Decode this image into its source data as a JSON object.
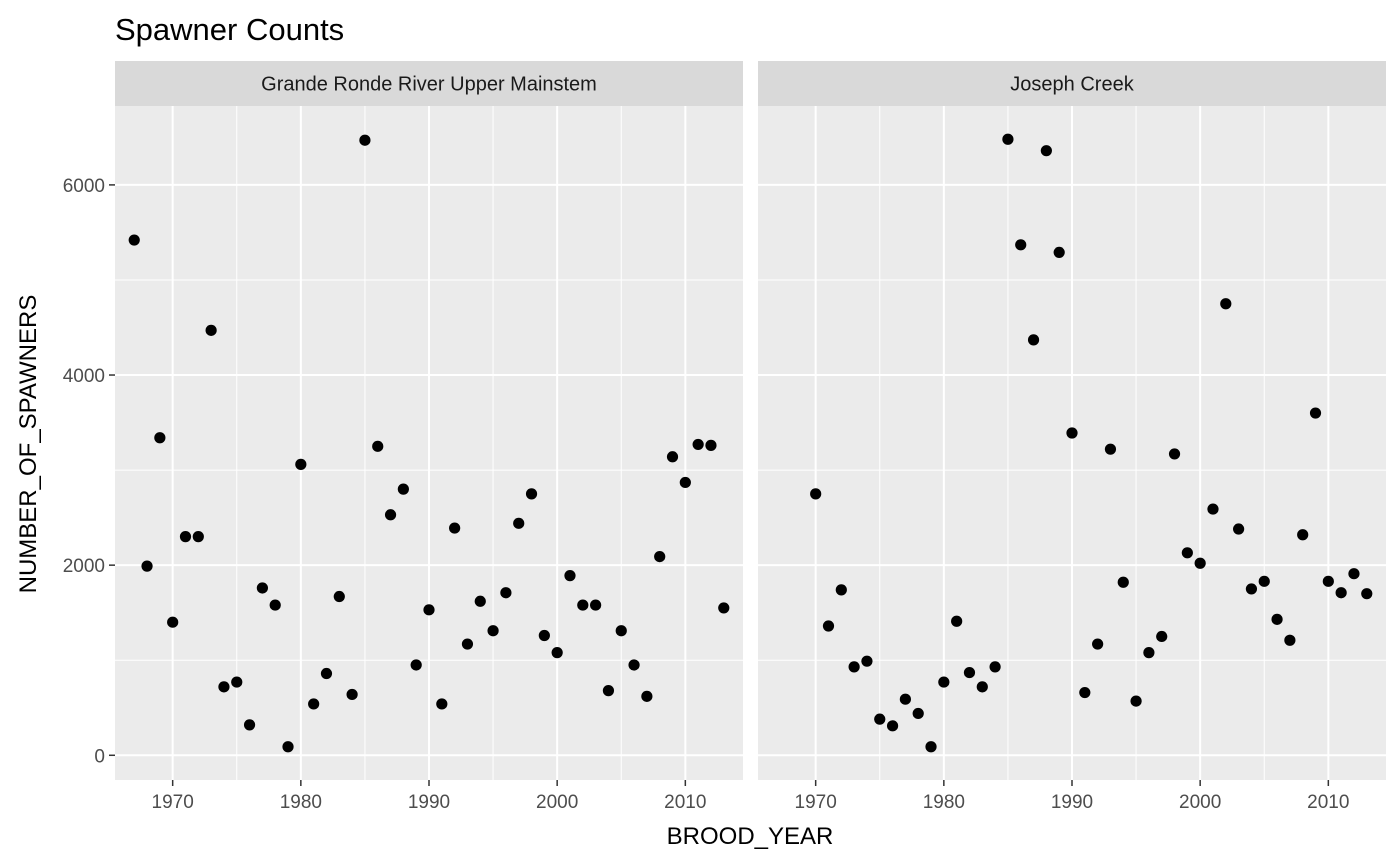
{
  "chart_data": {
    "type": "scatter",
    "title": "Spawner Counts",
    "xlabel": "BROOD_YEAR",
    "ylabel": "NUMBER_OF_SPAWNERS",
    "xlim": [
      1965.5,
      2014.5
    ],
    "ylim": [
      -260,
      6830
    ],
    "x_ticks": [
      1970,
      1980,
      1990,
      2000,
      2010
    ],
    "x_tick_labels": [
      "1970",
      "1980",
      "1990",
      "2000",
      "2010"
    ],
    "y_ticks": [
      0,
      2000,
      4000,
      6000
    ],
    "y_tick_labels": [
      "0",
      "2000",
      "4000",
      "6000"
    ],
    "grid": true,
    "point_color": "#000000",
    "panel_background": "#ebebeb",
    "strip_background": "#d9d9d9",
    "grid_color": "#ffffff",
    "panels": [
      {
        "label": "Grande Ronde River Upper Mainstem",
        "points": [
          [
            1967,
            5420
          ],
          [
            1968,
            1990
          ],
          [
            1969,
            3340
          ],
          [
            1970,
            1400
          ],
          [
            1971,
            2300
          ],
          [
            1972,
            2300
          ],
          [
            1973,
            4470
          ],
          [
            1974,
            720
          ],
          [
            1975,
            770
          ],
          [
            1976,
            320
          ],
          [
            1977,
            1760
          ],
          [
            1978,
            1580
          ],
          [
            1979,
            90
          ],
          [
            1980,
            3060
          ],
          [
            1981,
            540
          ],
          [
            1982,
            860
          ],
          [
            1983,
            1670
          ],
          [
            1984,
            640
          ],
          [
            1985,
            6470
          ],
          [
            1986,
            3250
          ],
          [
            1987,
            2530
          ],
          [
            1988,
            2800
          ],
          [
            1989,
            950
          ],
          [
            1990,
            1530
          ],
          [
            1991,
            540
          ],
          [
            1992,
            2390
          ],
          [
            1993,
            1170
          ],
          [
            1994,
            1620
          ],
          [
            1995,
            1310
          ],
          [
            1996,
            1710
          ],
          [
            1997,
            2440
          ],
          [
            1998,
            2750
          ],
          [
            1999,
            1260
          ],
          [
            2000,
            1080
          ],
          [
            2001,
            1890
          ],
          [
            2002,
            1580
          ],
          [
            2003,
            1580
          ],
          [
            2004,
            680
          ],
          [
            2005,
            1310
          ],
          [
            2006,
            950
          ],
          [
            2007,
            620
          ],
          [
            2008,
            2090
          ],
          [
            2009,
            3140
          ],
          [
            2010,
            2870
          ],
          [
            2011,
            3270
          ],
          [
            2012,
            3260
          ],
          [
            2013,
            1550
          ]
        ]
      },
      {
        "label": "Joseph Creek",
        "points": [
          [
            1970,
            2750
          ],
          [
            1971,
            1360
          ],
          [
            1972,
            1740
          ],
          [
            1973,
            930
          ],
          [
            1974,
            990
          ],
          [
            1975,
            380
          ],
          [
            1976,
            310
          ],
          [
            1977,
            590
          ],
          [
            1978,
            440
          ],
          [
            1979,
            90
          ],
          [
            1980,
            770
          ],
          [
            1981,
            1410
          ],
          [
            1982,
            870
          ],
          [
            1983,
            720
          ],
          [
            1984,
            930
          ],
          [
            1985,
            6480
          ],
          [
            1986,
            5370
          ],
          [
            1987,
            4370
          ],
          [
            1988,
            6360
          ],
          [
            1989,
            5290
          ],
          [
            1990,
            3390
          ],
          [
            1991,
            660
          ],
          [
            1992,
            1170
          ],
          [
            1993,
            3220
          ],
          [
            1994,
            1820
          ],
          [
            1995,
            570
          ],
          [
            1996,
            1080
          ],
          [
            1997,
            1250
          ],
          [
            1998,
            3170
          ],
          [
            1999,
            2130
          ],
          [
            2000,
            2020
          ],
          [
            2001,
            2590
          ],
          [
            2002,
            4750
          ],
          [
            2003,
            2380
          ],
          [
            2004,
            1750
          ],
          [
            2005,
            1830
          ],
          [
            2006,
            1430
          ],
          [
            2007,
            1210
          ],
          [
            2008,
            2320
          ],
          [
            2009,
            3600
          ],
          [
            2010,
            1830
          ],
          [
            2011,
            1710
          ],
          [
            2012,
            1910
          ],
          [
            2013,
            1700
          ]
        ]
      }
    ]
  }
}
